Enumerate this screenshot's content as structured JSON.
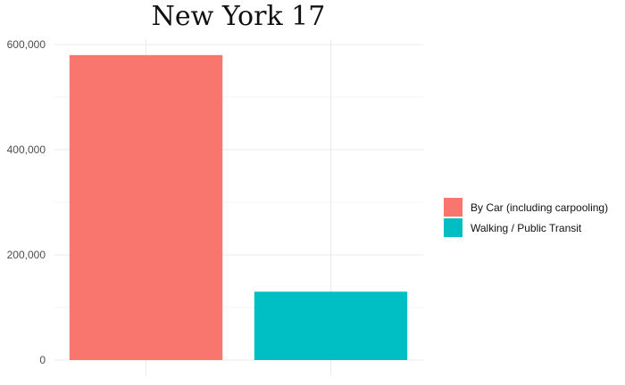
{
  "chart_data": {
    "type": "bar",
    "title": "New York 17",
    "xlabel": "",
    "ylabel": "",
    "categories": [
      "By Car (including carpooling)",
      "Walking / Public Transit"
    ],
    "values": [
      580000,
      130000
    ],
    "colors": [
      "#F8766D",
      "#00BFC4"
    ],
    "ylim": [
      0,
      600000
    ],
    "yticks": [
      0,
      200000,
      400000,
      600000
    ],
    "ytick_labels": [
      "0",
      "200,000",
      "400,000",
      "600,000"
    ],
    "minor_yticks": [
      100000,
      300000,
      500000
    ],
    "grid": true,
    "legend": {
      "position": "right",
      "entries": [
        "By Car (including carpooling)",
        "Walking / Public Transit"
      ]
    }
  }
}
